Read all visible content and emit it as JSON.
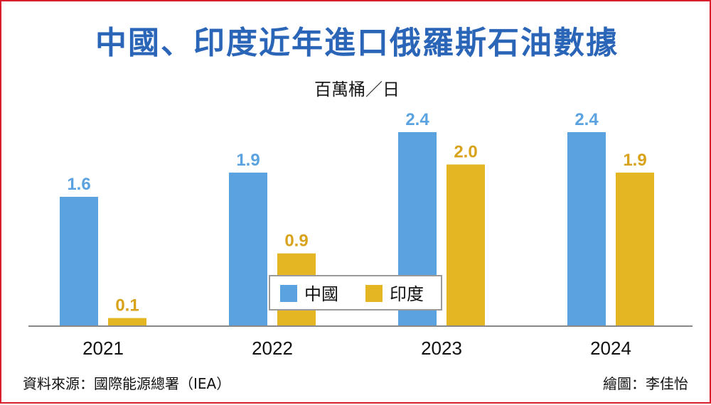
{
  "title": "中國、印度近年進口俄羅斯石油數據",
  "unit_label": "百萬桶／日",
  "source": "資料來源：國際能源總署（IEA）",
  "credit": "繪圖：李佳怡",
  "colors": {
    "china": "#5ba3e0",
    "india": "#e4b624",
    "china_label": "#5ba3e0",
    "india_label": "#d9a21b",
    "title": "#2a65b8",
    "frame": "#d9202a"
  },
  "chart_data": {
    "type": "bar",
    "categories": [
      "2021",
      "2022",
      "2023",
      "2024"
    ],
    "series": [
      {
        "name": "中國",
        "values": [
          1.6,
          1.9,
          2.4,
          2.4
        ],
        "labels": [
          "1.6",
          "1.9",
          "2.4",
          "2.4"
        ]
      },
      {
        "name": "印度",
        "values": [
          0.1,
          0.9,
          2.0,
          1.9
        ],
        "labels": [
          "0.1",
          "0.9",
          "2.0",
          "1.9"
        ]
      }
    ],
    "ylabel": "百萬桶／日",
    "ylim": [
      0,
      2.4
    ],
    "grid": false,
    "legend_position": "center"
  }
}
